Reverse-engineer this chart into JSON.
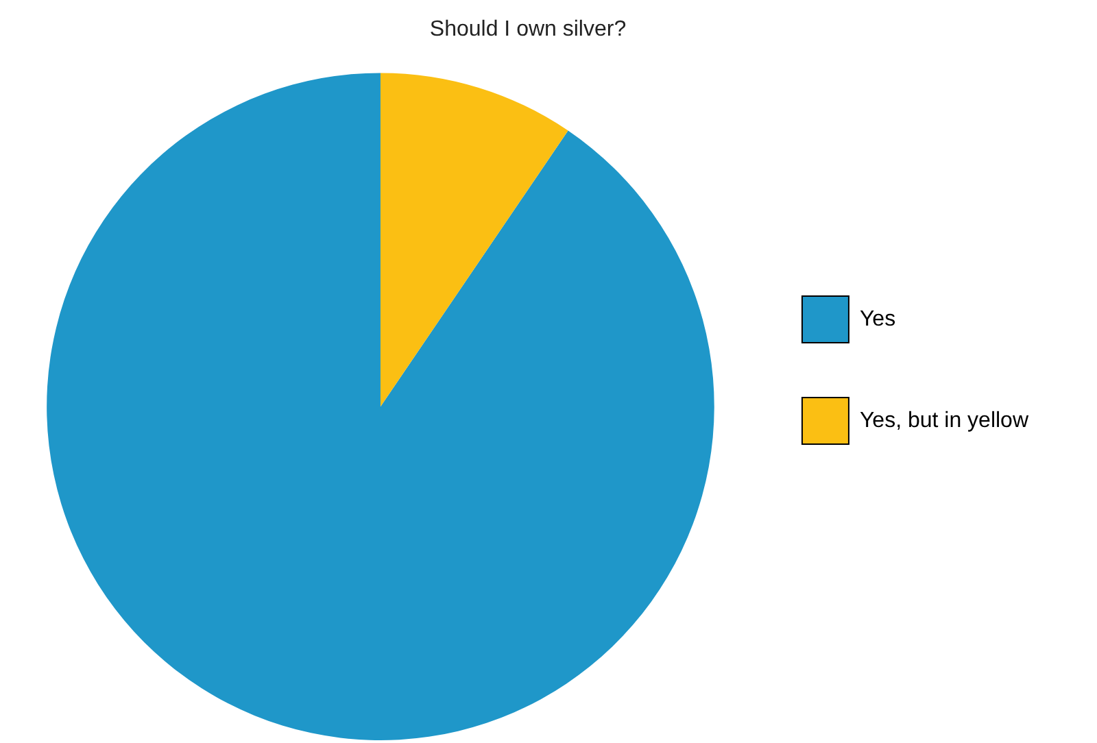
{
  "chart_data": {
    "type": "pie",
    "title": "Should I own silver?",
    "categories": [
      "Yes",
      "Yes, but in yellow"
    ],
    "values": [
      90.5,
      9.5
    ],
    "colors": [
      "#1f97c9",
      "#fbbf13"
    ],
    "legend": "right"
  }
}
